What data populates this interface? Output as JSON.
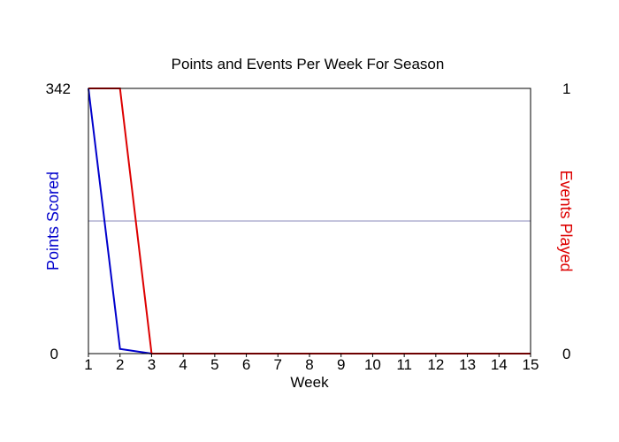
{
  "chart_data": {
    "type": "line",
    "title": "Points and Events Per Week For Season",
    "xlabel": "Week",
    "x": [
      1,
      2,
      3,
      4,
      5,
      6,
      7,
      8,
      9,
      10,
      11,
      12,
      13,
      14,
      15
    ],
    "xlim": [
      1,
      15
    ],
    "y_left": {
      "label": "Points Scored",
      "ticks": [
        "342",
        "0"
      ],
      "lim": [
        0,
        342
      ],
      "color": "#0000cc"
    },
    "y_right": {
      "label": "Events Played",
      "ticks": [
        "1",
        "0"
      ],
      "lim": [
        0,
        1
      ],
      "color": "#dd0000"
    },
    "series": [
      {
        "axis": "left",
        "color": "#0000cc",
        "values": [
          342,
          6,
          0,
          0,
          0,
          0,
          0,
          0,
          0,
          0,
          0,
          0,
          0,
          0,
          0
        ]
      },
      {
        "axis": "right",
        "color": "#dd0000",
        "values": [
          1,
          1,
          0,
          0,
          0,
          0,
          0,
          0,
          0,
          0,
          0,
          0,
          0,
          0,
          0
        ]
      }
    ],
    "midline": {
      "value": 171,
      "color": "#8888bb"
    }
  }
}
